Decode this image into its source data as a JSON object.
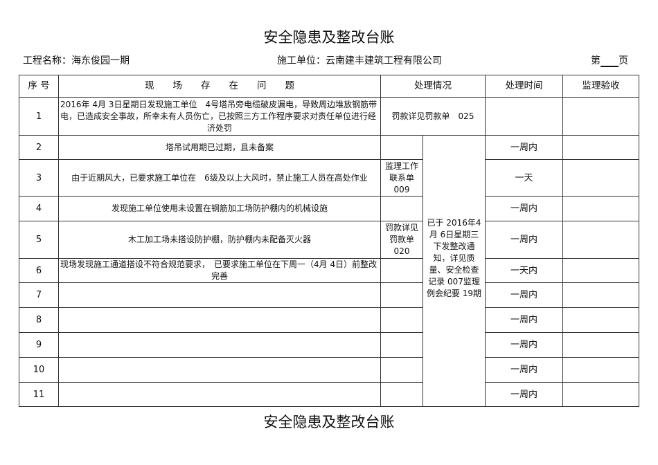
{
  "title": "安全隐患及整改台账",
  "project_label": "工程名称：海东俊园一期",
  "contractor_label": "施工单位：云南建丰建筑工程有限公司",
  "page_prefix": "第",
  "page_suffix": "页",
  "headers": {
    "seq": "序 号",
    "problem": "现　　场　　存　　在　　问　　题",
    "handling": "处理情况",
    "time": "处理时间",
    "acceptance": "监理验收"
  },
  "rows": [
    {
      "seq": "1",
      "problem": "2016年 4月 3日星期日发现施工单位　4号塔吊旁电缆破皮漏电，导致周边堆放钢筋带电，已造成安全事故，所幸未有人员伤亡，已按照三方工作程序要求对责任单位进行经济处罚",
      "handling": "罚款详见罚款单　025",
      "time": ""
    },
    {
      "seq": "2",
      "problem": "塔吊试用期已过期，且未备案",
      "handling": "",
      "time": "一周内"
    },
    {
      "seq": "3",
      "problem": "由于近期风大，已要求施工单位在　6级及以上大风时，禁止施工人员在高处作业",
      "handling": "监理工作联系单 009",
      "time": "一天"
    },
    {
      "seq": "4",
      "problem": "发现施工单位使用未设置在钢筋加工场防护棚内的机械设施",
      "handling": "",
      "time": "一周内"
    },
    {
      "seq": "5",
      "problem": "木工加工场未搭设防护棚，防护棚内未配备灭火器",
      "handling": "罚款详见罚款单 020",
      "time": "一周内"
    },
    {
      "seq": "6",
      "problem": "现场发现施工通道搭设不符合规范要求，　已要求施工单位在下周一（4月 4日）前整改完善",
      "handling": "",
      "time": "一天内"
    },
    {
      "seq": "7",
      "problem": "",
      "handling": "",
      "time": "一周内"
    },
    {
      "seq": "8",
      "problem": "",
      "handling": "",
      "time": "一周内"
    },
    {
      "seq": "9",
      "problem": "",
      "handling": "",
      "time": "一周内"
    },
    {
      "seq": "10",
      "problem": "",
      "handling": "",
      "time": "一周内"
    },
    {
      "seq": "11",
      "problem": "",
      "handling": "",
      "time": "一周内"
    }
  ],
  "merged_handling": "已于 2016年4月 6日星期三下发整改通知，详见质量、安全检查记录 007监理例会纪要 19期"
}
